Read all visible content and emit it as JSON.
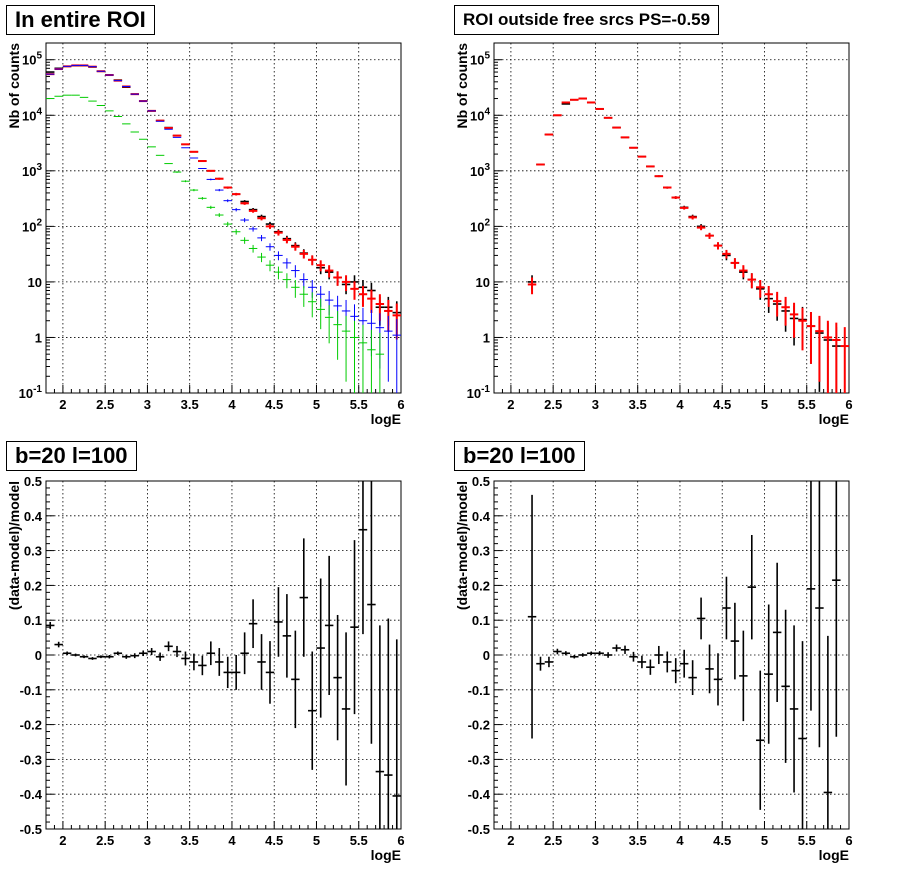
{
  "colors": {
    "total": "#000000",
    "model": "#ff0000",
    "comp_blue": "#0000ff",
    "comp_green": "#00cc00",
    "grid": "#000000"
  },
  "chart_data": [
    {
      "id": "top-left",
      "type": "scatter",
      "title": "In entire ROI",
      "xlabel": "logE",
      "ylabel": "Nb of counts",
      "xlim": [
        1.8,
        6.0
      ],
      "ylim": [
        0.1,
        200000
      ],
      "yscale": "log",
      "grid": true,
      "x_ticks": [
        "2",
        "2.5",
        "3",
        "3.5",
        "4",
        "4.5",
        "5",
        "5.5",
        "6"
      ],
      "y_ticks": [
        "10^-1",
        "1",
        "10",
        "10^2",
        "10^3",
        "10^4",
        "10^5"
      ],
      "bin_width": 0.1,
      "series": [
        {
          "key": "total",
          "x": [
            1.85,
            1.95,
            2.05,
            2.15,
            2.25,
            2.35,
            2.45,
            2.55,
            2.65,
            2.75,
            2.85,
            2.95,
            3.05,
            3.15,
            3.25,
            3.35,
            3.45,
            3.55,
            3.65,
            3.75,
            3.85,
            3.95,
            4.05,
            4.15,
            4.25,
            4.35,
            4.45,
            4.55,
            4.65,
            4.75,
            4.85,
            4.95,
            5.05,
            5.15,
            5.25,
            5.35,
            5.45,
            5.55,
            5.65,
            5.75,
            5.85,
            5.95
          ],
          "y": [
            60000,
            70000,
            76000,
            78000,
            78000,
            74000,
            62000,
            53000,
            43000,
            32000,
            24000,
            18000,
            12000,
            8000,
            6000,
            4300,
            3000,
            2200,
            1500,
            1000,
            720,
            500,
            380,
            280,
            200,
            150,
            110,
            80,
            60,
            45,
            33,
            25,
            18,
            15,
            12,
            9,
            10,
            8,
            7,
            3.5,
            3.5,
            2.8
          ]
        },
        {
          "key": "model",
          "x": [
            1.85,
            1.95,
            2.05,
            2.15,
            2.25,
            2.35,
            2.45,
            2.55,
            2.65,
            2.75,
            2.85,
            2.95,
            3.05,
            3.15,
            3.25,
            3.35,
            3.45,
            3.55,
            3.65,
            3.75,
            3.85,
            3.95,
            4.05,
            4.15,
            4.25,
            4.35,
            4.45,
            4.55,
            4.65,
            4.75,
            4.85,
            4.95,
            5.05,
            5.15,
            5.25,
            5.35,
            5.45,
            5.55,
            5.65,
            5.75,
            5.85,
            5.95
          ],
          "y": [
            55000,
            68000,
            76000,
            79000,
            79000,
            75000,
            62000,
            53000,
            42000,
            33000,
            24000,
            18000,
            12000,
            8000,
            5900,
            4300,
            3000,
            2200,
            1500,
            1000,
            720,
            500,
            380,
            260,
            190,
            140,
            100,
            77,
            57,
            43,
            32,
            25,
            20,
            16,
            12,
            10,
            7.5,
            6,
            5,
            4,
            3,
            2.5
          ]
        },
        {
          "key": "comp_blue",
          "x": [
            1.85,
            1.95,
            2.05,
            2.15,
            2.25,
            2.35,
            2.45,
            2.55,
            2.65,
            2.75,
            2.85,
            2.95,
            3.05,
            3.15,
            3.25,
            3.35,
            3.45,
            3.55,
            3.65,
            3.75,
            3.85,
            3.95,
            4.05,
            4.15,
            4.25,
            4.35,
            4.45,
            4.55,
            4.65,
            4.75,
            4.85,
            4.95,
            5.05,
            5.15,
            5.25,
            5.35,
            5.45,
            5.55,
            5.65,
            5.75,
            5.85,
            5.95
          ],
          "y": [
            55000,
            68000,
            76000,
            79000,
            79000,
            75000,
            62000,
            53000,
            42000,
            33000,
            24000,
            18000,
            12000,
            7800,
            5600,
            4000,
            2600,
            1700,
            1100,
            700,
            450,
            290,
            200,
            130,
            90,
            62,
            43,
            30,
            22,
            16,
            11,
            8,
            6,
            4.7,
            3.7,
            3,
            2.4,
            2,
            1.8,
            1.5,
            1.3,
            1.1
          ]
        },
        {
          "key": "comp_green",
          "x": [
            1.85,
            1.95,
            2.05,
            2.15,
            2.25,
            2.35,
            2.45,
            2.55,
            2.65,
            2.75,
            2.85,
            2.95,
            3.05,
            3.15,
            3.25,
            3.35,
            3.45,
            3.55,
            3.65,
            3.75,
            3.85,
            3.95,
            4.05,
            4.15,
            4.25,
            4.35,
            4.45,
            4.55,
            4.65,
            4.75,
            4.85,
            4.95,
            5.05,
            5.15,
            5.25,
            5.35,
            5.45,
            5.55,
            5.65,
            5.75
          ],
          "y": [
            20000,
            22000,
            23000,
            23000,
            21000,
            18000,
            15000,
            12000,
            9500,
            7000,
            5000,
            3700,
            2700,
            1900,
            1350,
            950,
            650,
            450,
            320,
            220,
            160,
            110,
            80,
            56,
            40,
            28,
            20,
            15,
            11,
            8,
            6,
            4.4,
            3.2,
            2.3,
            1.7,
            1.3,
            1,
            0.8,
            0.6,
            0.5
          ]
        }
      ]
    },
    {
      "id": "top-right",
      "type": "scatter",
      "title": "ROI outside free srcs PS=-0.59",
      "xlabel": "logE",
      "ylabel": "Nb of counts",
      "xlim": [
        1.8,
        6.0
      ],
      "ylim": [
        0.1,
        200000
      ],
      "yscale": "log",
      "grid": true,
      "x_ticks": [
        "2",
        "2.5",
        "3",
        "3.5",
        "4",
        "4.5",
        "5",
        "5.5",
        "6"
      ],
      "y_ticks": [
        "10^-1",
        "1",
        "10",
        "10^2",
        "10^3",
        "10^4",
        "10^5"
      ],
      "bin_width": 0.1,
      "series": [
        {
          "key": "total",
          "x": [
            2.25,
            2.35,
            2.45,
            2.55,
            2.65,
            2.75,
            2.85,
            2.95,
            3.05,
            3.15,
            3.25,
            3.35,
            3.45,
            3.55,
            3.65,
            3.75,
            3.85,
            3.95,
            4.05,
            4.15,
            4.25,
            4.35,
            4.45,
            4.55,
            4.65,
            4.75,
            4.85,
            4.95,
            5.05,
            5.15,
            5.25,
            5.35,
            5.45,
            5.55,
            5.65,
            5.75,
            5.85
          ],
          "y": [
            10,
            1300,
            4500,
            10000,
            16000,
            19000,
            20000,
            17000,
            13000,
            9000,
            6000,
            4000,
            2600,
            1800,
            1200,
            800,
            500,
            330,
            220,
            150,
            100,
            68,
            45,
            30,
            22,
            15,
            11,
            7.5,
            5,
            4,
            3,
            2.2,
            2.1,
            1.6,
            1.2,
            0.9,
            0.7
          ]
        },
        {
          "key": "model",
          "x": [
            2.25,
            2.35,
            2.45,
            2.55,
            2.65,
            2.75,
            2.85,
            2.95,
            3.05,
            3.15,
            3.25,
            3.35,
            3.45,
            3.55,
            3.65,
            3.75,
            3.85,
            3.95,
            4.05,
            4.15,
            4.25,
            4.35,
            4.45,
            4.55,
            4.65,
            4.75,
            4.85,
            4.95,
            5.05,
            5.15,
            5.25,
            5.35,
            5.45,
            5.55,
            5.65,
            5.75,
            5.85,
            5.95
          ],
          "y": [
            9,
            1300,
            4500,
            10000,
            17000,
            19000,
            20000,
            17000,
            13000,
            9000,
            6000,
            4000,
            2600,
            1800,
            1200,
            800,
            500,
            330,
            215,
            145,
            95,
            68,
            45,
            32,
            22,
            16,
            11,
            8,
            6,
            4.5,
            3.5,
            2.6,
            2,
            1.6,
            1.3,
            1,
            0.9,
            0.7
          ]
        }
      ]
    },
    {
      "id": "bottom-left",
      "type": "scatter",
      "title": "b=20 l=100",
      "xlabel": "logE",
      "ylabel": "(data-model)/model",
      "xlim": [
        1.8,
        6.0
      ],
      "ylim": [
        -0.5,
        0.5
      ],
      "yscale": "linear",
      "grid": true,
      "x_ticks": [
        "2",
        "2.5",
        "3",
        "3.5",
        "4",
        "4.5",
        "5",
        "5.5",
        "6"
      ],
      "y_ticks": [
        "-0.5",
        "-0.4",
        "-0.3",
        "-0.2",
        "-0.1",
        "0",
        "0.1",
        "0.2",
        "0.3",
        "0.4",
        "0.5"
      ],
      "bin_width": 0.1,
      "series": [
        {
          "key": "residual",
          "x": [
            1.85,
            1.95,
            2.05,
            2.15,
            2.25,
            2.35,
            2.45,
            2.55,
            2.65,
            2.75,
            2.85,
            2.95,
            3.05,
            3.15,
            3.25,
            3.35,
            3.45,
            3.55,
            3.65,
            3.75,
            3.85,
            3.95,
            4.05,
            4.15,
            4.25,
            4.35,
            4.45,
            4.55,
            4.65,
            4.75,
            4.85,
            4.95,
            5.05,
            5.15,
            5.25,
            5.35,
            5.45,
            5.55,
            5.65,
            5.75,
            5.85,
            5.95
          ],
          "y": [
            0.085,
            0.03,
            0.005,
            0.0,
            -0.005,
            -0.01,
            -0.005,
            -0.005,
            0.005,
            -0.005,
            -0.002,
            0.005,
            0.01,
            -0.005,
            0.025,
            0.01,
            -0.01,
            -0.02,
            -0.03,
            0.005,
            -0.02,
            -0.05,
            -0.05,
            0.005,
            0.09,
            -0.02,
            -0.05,
            0.095,
            0.055,
            -0.07,
            0.165,
            -0.16,
            0.02,
            0.085,
            -0.065,
            -0.155,
            0.08,
            0.36,
            0.145,
            -0.335,
            -0.345,
            -0.405
          ],
          "err": [
            0.01,
            0.008,
            0.005,
            0.004,
            0.004,
            0.004,
            0.004,
            0.005,
            0.005,
            0.006,
            0.007,
            0.008,
            0.01,
            0.012,
            0.014,
            0.016,
            0.02,
            0.024,
            0.028,
            0.034,
            0.04,
            0.045,
            0.05,
            0.06,
            0.07,
            0.08,
            0.09,
            0.1,
            0.12,
            0.14,
            0.17,
            0.17,
            0.2,
            0.2,
            0.18,
            0.22,
            0.25,
            0.3,
            0.4,
            0.42,
            0.45,
            0.45
          ]
        }
      ]
    },
    {
      "id": "bottom-right",
      "type": "scatter",
      "title": "b=20 l=100",
      "xlabel": "logE",
      "ylabel": "(data-model)/model",
      "xlim": [
        1.8,
        6.0
      ],
      "ylim": [
        -0.5,
        0.5
      ],
      "yscale": "linear",
      "grid": true,
      "x_ticks": [
        "2",
        "2.5",
        "3",
        "3.5",
        "4",
        "4.5",
        "5",
        "5.5",
        "6"
      ],
      "y_ticks": [
        "-0.5",
        "-0.4",
        "-0.3",
        "-0.2",
        "-0.1",
        "0",
        "0.1",
        "0.2",
        "0.3",
        "0.4",
        "0.5"
      ],
      "bin_width": 0.1,
      "series": [
        {
          "key": "residual",
          "x": [
            2.25,
            2.35,
            2.45,
            2.55,
            2.65,
            2.75,
            2.85,
            2.95,
            3.05,
            3.15,
            3.25,
            3.35,
            3.45,
            3.55,
            3.65,
            3.75,
            3.85,
            3.95,
            4.05,
            4.15,
            4.25,
            4.35,
            4.45,
            4.55,
            4.65,
            4.75,
            4.85,
            4.95,
            5.05,
            5.15,
            5.25,
            5.35,
            5.45,
            5.55,
            5.65,
            5.75,
            5.85
          ],
          "y": [
            0.11,
            -0.025,
            -0.02,
            0.01,
            0.005,
            -0.005,
            0.0,
            0.005,
            0.005,
            0.0,
            0.02,
            0.015,
            -0.005,
            -0.02,
            -0.035,
            0.0,
            -0.02,
            -0.045,
            -0.025,
            -0.065,
            0.105,
            -0.04,
            -0.07,
            0.135,
            0.04,
            -0.06,
            0.195,
            -0.245,
            -0.055,
            0.065,
            -0.09,
            -0.155,
            -0.24,
            0.19,
            0.135,
            -0.395,
            0.215
          ],
          "err": [
            0.35,
            0.02,
            0.015,
            0.008,
            0.006,
            0.005,
            0.005,
            0.005,
            0.006,
            0.008,
            0.01,
            0.012,
            0.014,
            0.018,
            0.022,
            0.026,
            0.03,
            0.036,
            0.04,
            0.05,
            0.06,
            0.07,
            0.075,
            0.09,
            0.11,
            0.13,
            0.15,
            0.2,
            0.2,
            0.2,
            0.22,
            0.24,
            0.28,
            0.35,
            0.4,
            0.45,
            0.45
          ]
        }
      ]
    }
  ]
}
